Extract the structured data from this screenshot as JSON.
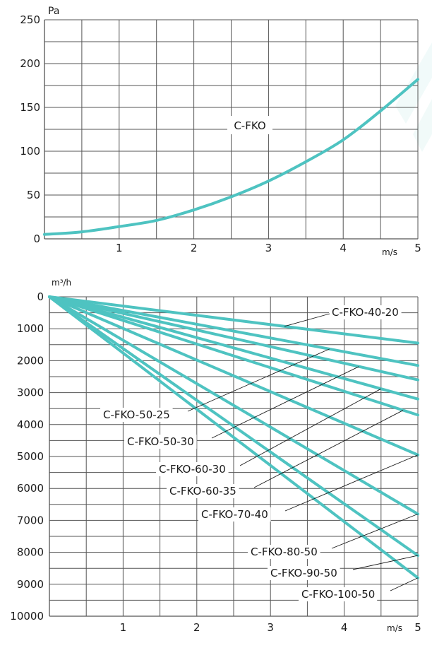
{
  "charts": {
    "top": {
      "ylabel": "Pa",
      "xlabel": "m/s",
      "y_ticks": [
        "0",
        "50",
        "100",
        "150",
        "200",
        "250"
      ],
      "x_ticks": [
        "1",
        "2",
        "3",
        "4",
        "5"
      ]
    },
    "bottom": {
      "ylabel": "m³/h",
      "xlabel": "m/s",
      "y_ticks": [
        "0",
        "1000",
        "2000",
        "3000",
        "4000",
        "5000",
        "6000",
        "7000",
        "8000",
        "9000",
        "10000"
      ],
      "x_ticks": [
        "1",
        "2",
        "3",
        "4",
        "5"
      ]
    }
  },
  "chart_data": [
    {
      "type": "line",
      "xlabel": "m/s",
      "ylabel": "Pa",
      "xlim": [
        0,
        5
      ],
      "ylim": [
        0,
        250
      ],
      "grid": true,
      "series": [
        {
          "name": "C-FKO",
          "x": [
            0,
            0.5,
            1,
            1.5,
            2,
            2.5,
            3,
            3.5,
            4,
            4.5,
            5
          ],
          "y": [
            5,
            8,
            14,
            21,
            33,
            48,
            66,
            88,
            113,
            146,
            182
          ]
        }
      ],
      "color": "#4ec3c1"
    },
    {
      "type": "line",
      "xlabel": "m/s",
      "ylabel": "m³/h",
      "xlim": [
        0,
        5
      ],
      "ylim": [
        0,
        10000
      ],
      "y_inverted": true,
      "grid": true,
      "color": "#4ec3c1",
      "series": [
        {
          "name": "C-FKO-40-20",
          "x": [
            0,
            5
          ],
          "y": [
            0,
            1450
          ]
        },
        {
          "name": "C-FKO-50-25",
          "x": [
            0,
            5
          ],
          "y": [
            0,
            2150
          ]
        },
        {
          "name": "C-FKO-50-30",
          "x": [
            0,
            5
          ],
          "y": [
            0,
            2600
          ]
        },
        {
          "name": "C-FKO-60-30",
          "x": [
            0,
            5
          ],
          "y": [
            0,
            3200
          ]
        },
        {
          "name": "C-FKO-60-35",
          "x": [
            0,
            5
          ],
          "y": [
            0,
            3700
          ]
        },
        {
          "name": "C-FKO-70-40",
          "x": [
            0,
            5
          ],
          "y": [
            0,
            4950
          ]
        },
        {
          "name": "C-FKO-80-50",
          "x": [
            0,
            5
          ],
          "y": [
            0,
            6800
          ]
        },
        {
          "name": "C-FKO-90-50",
          "x": [
            0,
            5
          ],
          "y": [
            0,
            8100
          ]
        },
        {
          "name": "C-FKO-100-50",
          "x": [
            0,
            5
          ],
          "y": [
            0,
            8800
          ]
        }
      ]
    }
  ]
}
